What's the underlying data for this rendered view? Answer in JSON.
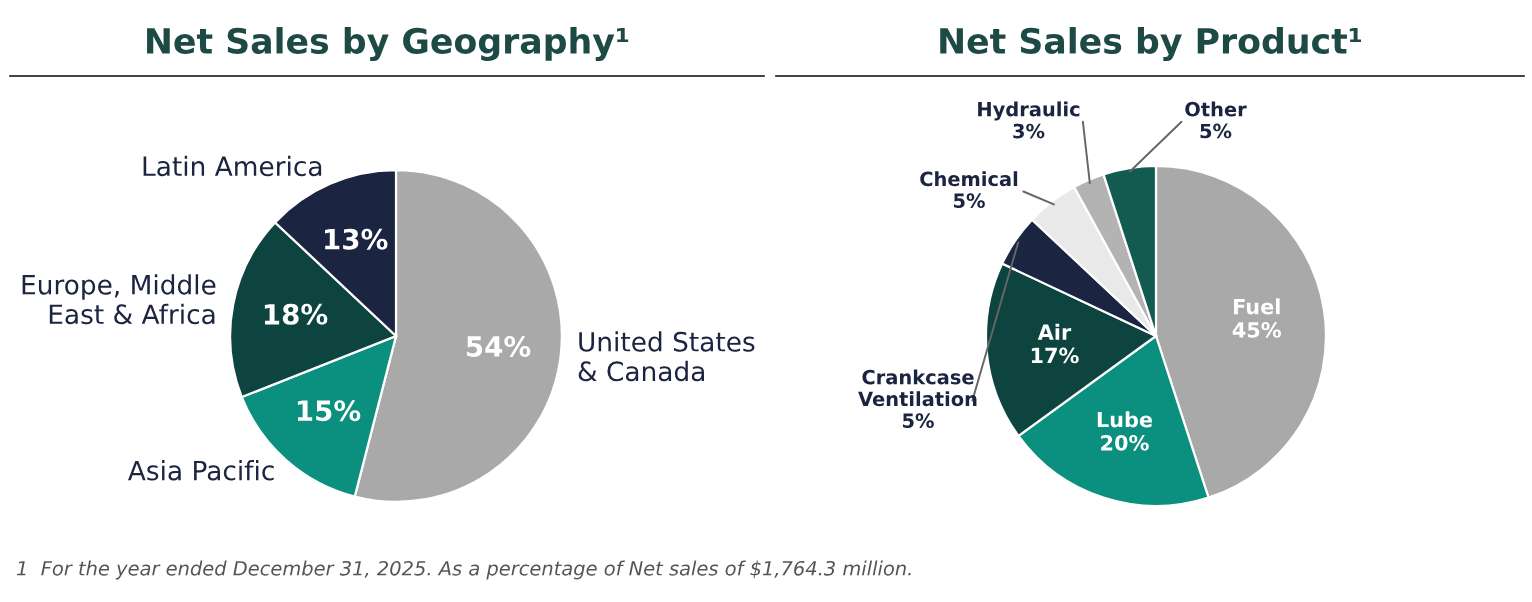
{
  "chart_data": [
    {
      "type": "pie",
      "title": "Net Sales by Geography¹",
      "categories": [
        "United States\n& Canada",
        "Asia Pacific",
        "Europe, Middle\nEast & Africa",
        "Latin America"
      ],
      "values": [
        54,
        15,
        18,
        13
      ],
      "colors": [
        "#a9a9a9",
        "#0b8f7e",
        "#0e443f",
        "#1b2440"
      ],
      "value_labels": [
        "54%",
        "15%",
        "18%",
        "13%"
      ],
      "annotations": [
        "1  For the year ended December 31, 2025. As a percentage of Net sales of $1,764.3 million."
      ]
    },
    {
      "type": "pie",
      "title": "Net Sales by Product¹",
      "categories": [
        "Fuel",
        "Lube",
        "Air",
        "Crankcase\nVentilation",
        "Chemical",
        "Hydraulic",
        "Other"
      ],
      "values": [
        45,
        20,
        17,
        5,
        5,
        3,
        5
      ],
      "colors": [
        "#a9a9a9",
        "#0b8f7e",
        "#0e443f",
        "#1b2440",
        "#e9e9e9",
        "#b3b3b3",
        "#135a50"
      ],
      "value_labels": [
        "45%",
        "20%",
        "17%",
        "5%",
        "5%",
        "3%",
        "5%"
      ]
    }
  ]
}
